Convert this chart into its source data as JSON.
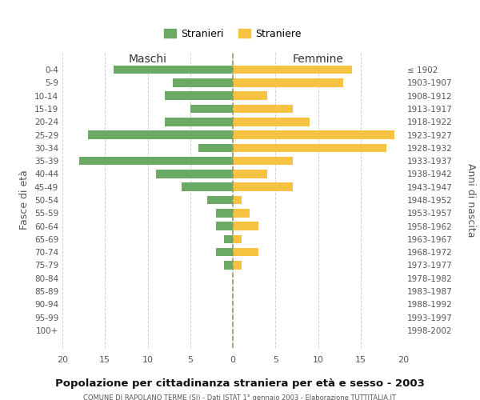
{
  "age_groups": [
    "0-4",
    "5-9",
    "10-14",
    "15-19",
    "20-24",
    "25-29",
    "30-34",
    "35-39",
    "40-44",
    "45-49",
    "50-54",
    "55-59",
    "60-64",
    "65-69",
    "70-74",
    "75-79",
    "80-84",
    "85-89",
    "90-94",
    "95-99",
    "100+"
  ],
  "birth_years": [
    "1998-2002",
    "1993-1997",
    "1988-1992",
    "1983-1987",
    "1978-1982",
    "1973-1977",
    "1968-1972",
    "1963-1967",
    "1958-1962",
    "1953-1957",
    "1948-1952",
    "1943-1947",
    "1938-1942",
    "1933-1937",
    "1928-1932",
    "1923-1927",
    "1918-1922",
    "1913-1917",
    "1908-1912",
    "1903-1907",
    "≤ 1902"
  ],
  "maschi": [
    14,
    7,
    8,
    5,
    8,
    17,
    4,
    18,
    9,
    6,
    3,
    2,
    2,
    1,
    2,
    1,
    0,
    0,
    0,
    0,
    0
  ],
  "femmine": [
    14,
    13,
    4,
    7,
    9,
    19,
    18,
    7,
    4,
    7,
    1,
    2,
    3,
    1,
    3,
    1,
    0,
    0,
    0,
    0,
    0
  ],
  "maschi_color": "#6aaa64",
  "femmine_color": "#f5c242",
  "background_color": "#ffffff",
  "grid_color": "#cccccc",
  "title": "Popolazione per cittadinanza straniera per età e sesso - 2003",
  "subtitle": "COMUNE DI RAPOLANO TERME (SI) - Dati ISTAT 1° gennaio 2003 - Elaborazione TUTTITALIA.IT",
  "ylabel_left": "Fasce di età",
  "ylabel_right": "Anni di nascita",
  "label_maschi": "Maschi",
  "label_femmine": "Femmine",
  "legend_maschi": "Stranieri",
  "legend_femmine": "Straniere",
  "xlim": 20
}
